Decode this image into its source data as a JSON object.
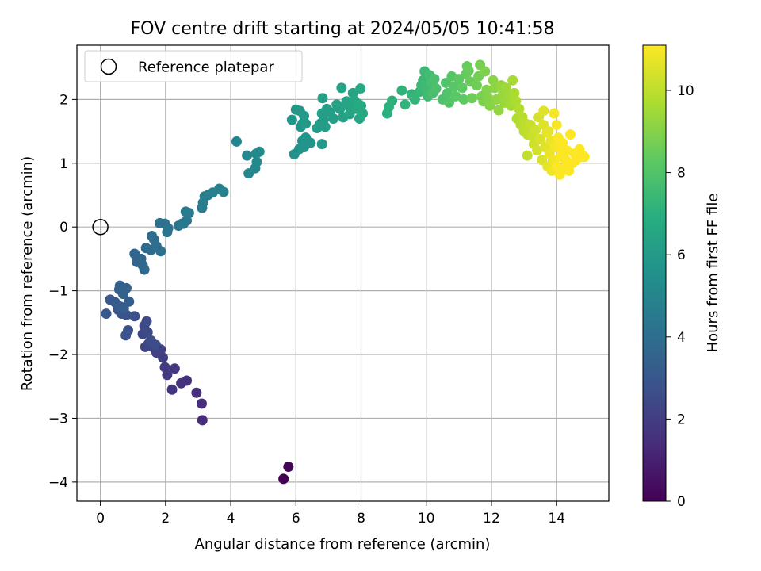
{
  "chart_data": {
    "type": "scatter",
    "title": "FOV centre drift starting at 2024/05/05 10:41:58",
    "xlabel": "Angular distance from reference (arcmin)",
    "ylabel": "Rotation from reference (arcmin)",
    "xlim": [
      -0.72,
      15.6
    ],
    "ylim": [
      -4.3,
      2.85
    ],
    "x_ticks": [
      0,
      2,
      4,
      6,
      8,
      10,
      12,
      14
    ],
    "y_ticks": [
      -4,
      -3,
      -2,
      -1,
      0,
      1,
      2
    ],
    "grid": true,
    "legend": {
      "position": "top-left",
      "entries": [
        "Reference platepar"
      ]
    },
    "reference_point": {
      "x": 0,
      "y": 0
    },
    "colorbar": {
      "label": "Hours from first FF file",
      "range": [
        0,
        11.1
      ],
      "ticks": [
        0,
        2,
        4,
        6,
        8,
        10
      ],
      "colormap": "viridis"
    },
    "points": [
      {
        "x": 5.62,
        "y": -3.95,
        "h": 0.05
      },
      {
        "x": 5.77,
        "y": -3.76,
        "h": 0.12
      },
      {
        "x": 3.13,
        "y": -3.03,
        "h": 1.35
      },
      {
        "x": 3.11,
        "y": -2.77,
        "h": 1.4
      },
      {
        "x": 2.95,
        "y": -2.6,
        "h": 1.45
      },
      {
        "x": 2.65,
        "y": -2.41,
        "h": 1.55
      },
      {
        "x": 2.48,
        "y": -2.45,
        "h": 1.62
      },
      {
        "x": 2.2,
        "y": -2.55,
        "h": 1.7
      },
      {
        "x": 2.28,
        "y": -2.22,
        "h": 1.78
      },
      {
        "x": 2.05,
        "y": -2.32,
        "h": 1.85
      },
      {
        "x": 1.98,
        "y": -2.2,
        "h": 1.92
      },
      {
        "x": 1.92,
        "y": -2.05,
        "h": 2.0
      },
      {
        "x": 1.85,
        "y": -1.92,
        "h": 2.05
      },
      {
        "x": 1.72,
        "y": -1.97,
        "h": 2.12
      },
      {
        "x": 1.6,
        "y": -1.88,
        "h": 2.18
      },
      {
        "x": 1.48,
        "y": -1.83,
        "h": 2.25
      },
      {
        "x": 1.38,
        "y": -1.88,
        "h": 2.32
      },
      {
        "x": 1.3,
        "y": -1.68,
        "h": 2.38
      },
      {
        "x": 1.45,
        "y": -1.65,
        "h": 2.42
      },
      {
        "x": 1.35,
        "y": -1.55,
        "h": 2.48
      },
      {
        "x": 1.42,
        "y": -1.48,
        "h": 2.52
      },
      {
        "x": 1.55,
        "y": -1.78,
        "h": 2.58
      },
      {
        "x": 1.7,
        "y": -1.85,
        "h": 2.62
      },
      {
        "x": 1.05,
        "y": -1.4,
        "h": 2.7
      },
      {
        "x": 0.85,
        "y": -1.62,
        "h": 2.75
      },
      {
        "x": 0.78,
        "y": -1.7,
        "h": 2.8
      },
      {
        "x": 0.8,
        "y": -1.38,
        "h": 2.85
      },
      {
        "x": 0.65,
        "y": -1.36,
        "h": 2.9
      },
      {
        "x": 0.55,
        "y": -1.3,
        "h": 2.95
      },
      {
        "x": 0.45,
        "y": -1.18,
        "h": 3.0
      },
      {
        "x": 0.3,
        "y": -1.14,
        "h": 3.05
      },
      {
        "x": 0.18,
        "y": -1.36,
        "h": 3.1
      },
      {
        "x": 0.52,
        "y": -1.22,
        "h": 3.15
      },
      {
        "x": 0.62,
        "y": -1.25,
        "h": 3.2
      },
      {
        "x": 0.72,
        "y": -1.28,
        "h": 3.25
      },
      {
        "x": 0.88,
        "y": -1.17,
        "h": 3.3
      },
      {
        "x": 0.58,
        "y": -0.98,
        "h": 3.35
      },
      {
        "x": 0.6,
        "y": -0.92,
        "h": 3.4
      },
      {
        "x": 0.8,
        "y": -0.96,
        "h": 3.45
      },
      {
        "x": 0.7,
        "y": -1.05,
        "h": 3.5
      },
      {
        "x": 1.12,
        "y": -0.55,
        "h": 3.55
      },
      {
        "x": 1.05,
        "y": -0.42,
        "h": 3.6
      },
      {
        "x": 1.25,
        "y": -0.5,
        "h": 3.65
      },
      {
        "x": 1.3,
        "y": -0.6,
        "h": 3.7
      },
      {
        "x": 1.35,
        "y": -0.67,
        "h": 3.75
      },
      {
        "x": 1.4,
        "y": -0.33,
        "h": 3.8
      },
      {
        "x": 1.55,
        "y": -0.36,
        "h": 3.85
      },
      {
        "x": 1.65,
        "y": -0.2,
        "h": 3.9
      },
      {
        "x": 1.58,
        "y": -0.14,
        "h": 3.95
      },
      {
        "x": 1.72,
        "y": -0.3,
        "h": 4.0
      },
      {
        "x": 1.85,
        "y": -0.38,
        "h": 4.05
      },
      {
        "x": 1.82,
        "y": 0.06,
        "h": 4.1
      },
      {
        "x": 1.98,
        "y": 0.05,
        "h": 4.15
      },
      {
        "x": 2.08,
        "y": -0.02,
        "h": 4.2
      },
      {
        "x": 2.05,
        "y": -0.08,
        "h": 4.25
      },
      {
        "x": 2.4,
        "y": 0.02,
        "h": 4.3
      },
      {
        "x": 2.5,
        "y": 0.05,
        "h": 4.35
      },
      {
        "x": 2.65,
        "y": 0.1,
        "h": 4.4
      },
      {
        "x": 2.55,
        "y": 0.05,
        "h": 4.45
      },
      {
        "x": 2.62,
        "y": 0.24,
        "h": 4.5
      },
      {
        "x": 2.72,
        "y": 0.22,
        "h": 4.55
      },
      {
        "x": 3.12,
        "y": 0.3,
        "h": 4.6
      },
      {
        "x": 3.15,
        "y": 0.38,
        "h": 4.65
      },
      {
        "x": 3.2,
        "y": 0.48,
        "h": 4.7
      },
      {
        "x": 3.3,
        "y": 0.5,
        "h": 4.75
      },
      {
        "x": 3.45,
        "y": 0.54,
        "h": 4.8
      },
      {
        "x": 3.65,
        "y": 0.6,
        "h": 4.85
      },
      {
        "x": 3.78,
        "y": 0.55,
        "h": 4.9
      },
      {
        "x": 4.18,
        "y": 1.34,
        "h": 5.0
      },
      {
        "x": 4.5,
        "y": 1.12,
        "h": 5.05
      },
      {
        "x": 4.55,
        "y": 0.84,
        "h": 5.1
      },
      {
        "x": 4.75,
        "y": 0.92,
        "h": 5.15
      },
      {
        "x": 4.8,
        "y": 1.02,
        "h": 5.2
      },
      {
        "x": 4.78,
        "y": 1.15,
        "h": 5.25
      },
      {
        "x": 4.88,
        "y": 1.18,
        "h": 5.3
      },
      {
        "x": 5.95,
        "y": 1.14,
        "h": 5.6
      },
      {
        "x": 6.1,
        "y": 1.22,
        "h": 5.63
      },
      {
        "x": 6.2,
        "y": 1.35,
        "h": 5.66
      },
      {
        "x": 6.25,
        "y": 1.25,
        "h": 5.69
      },
      {
        "x": 6.3,
        "y": 1.4,
        "h": 5.72
      },
      {
        "x": 6.45,
        "y": 1.32,
        "h": 5.75
      },
      {
        "x": 6.15,
        "y": 1.57,
        "h": 5.78
      },
      {
        "x": 6.2,
        "y": 1.62,
        "h": 5.81
      },
      {
        "x": 5.88,
        "y": 1.68,
        "h": 5.84
      },
      {
        "x": 6.0,
        "y": 1.84,
        "h": 5.87
      },
      {
        "x": 6.12,
        "y": 1.82,
        "h": 5.9
      },
      {
        "x": 6.25,
        "y": 1.74,
        "h": 5.93
      },
      {
        "x": 6.3,
        "y": 1.62,
        "h": 5.96
      },
      {
        "x": 6.8,
        "y": 1.3,
        "h": 6.0
      },
      {
        "x": 6.65,
        "y": 1.55,
        "h": 6.03
      },
      {
        "x": 6.75,
        "y": 1.62,
        "h": 6.06
      },
      {
        "x": 6.85,
        "y": 1.68,
        "h": 6.09
      },
      {
        "x": 6.9,
        "y": 1.57,
        "h": 6.12
      },
      {
        "x": 6.8,
        "y": 1.78,
        "h": 6.15
      },
      {
        "x": 6.95,
        "y": 1.85,
        "h": 6.18
      },
      {
        "x": 7.05,
        "y": 1.8,
        "h": 6.21
      },
      {
        "x": 7.15,
        "y": 1.7,
        "h": 6.24
      },
      {
        "x": 6.82,
        "y": 2.02,
        "h": 6.27
      },
      {
        "x": 7.25,
        "y": 1.92,
        "h": 6.3
      },
      {
        "x": 7.35,
        "y": 1.85,
        "h": 6.33
      },
      {
        "x": 7.45,
        "y": 1.72,
        "h": 6.36
      },
      {
        "x": 7.4,
        "y": 2.18,
        "h": 6.39
      },
      {
        "x": 7.55,
        "y": 1.97,
        "h": 6.42
      },
      {
        "x": 7.6,
        "y": 1.9,
        "h": 6.45
      },
      {
        "x": 7.65,
        "y": 1.77,
        "h": 6.48
      },
      {
        "x": 7.75,
        "y": 2.1,
        "h": 6.51
      },
      {
        "x": 7.8,
        "y": 1.98,
        "h": 6.54
      },
      {
        "x": 7.88,
        "y": 1.85,
        "h": 6.57
      },
      {
        "x": 7.95,
        "y": 1.7,
        "h": 6.6
      },
      {
        "x": 7.98,
        "y": 2.17,
        "h": 6.63
      },
      {
        "x": 8.0,
        "y": 1.9,
        "h": 6.66
      },
      {
        "x": 8.05,
        "y": 1.78,
        "h": 6.69
      },
      {
        "x": 7.92,
        "y": 1.93,
        "h": 6.72
      },
      {
        "x": 8.8,
        "y": 1.78,
        "h": 7.0
      },
      {
        "x": 8.85,
        "y": 1.88,
        "h": 7.05
      },
      {
        "x": 8.95,
        "y": 1.98,
        "h": 7.1
      },
      {
        "x": 9.25,
        "y": 2.14,
        "h": 7.15
      },
      {
        "x": 9.35,
        "y": 1.92,
        "h": 7.2
      },
      {
        "x": 9.55,
        "y": 2.08,
        "h": 7.25
      },
      {
        "x": 9.65,
        "y": 2.0,
        "h": 7.3
      },
      {
        "x": 9.8,
        "y": 2.12,
        "h": 7.35
      },
      {
        "x": 9.85,
        "y": 2.22,
        "h": 7.4
      },
      {
        "x": 9.9,
        "y": 2.3,
        "h": 7.45
      },
      {
        "x": 9.95,
        "y": 2.44,
        "h": 7.5
      },
      {
        "x": 10.0,
        "y": 2.18,
        "h": 7.55
      },
      {
        "x": 10.05,
        "y": 2.05,
        "h": 7.6
      },
      {
        "x": 10.1,
        "y": 2.38,
        "h": 7.65
      },
      {
        "x": 10.15,
        "y": 2.26,
        "h": 7.7
      },
      {
        "x": 10.2,
        "y": 2.1,
        "h": 7.75
      },
      {
        "x": 10.25,
        "y": 2.32,
        "h": 7.8
      },
      {
        "x": 10.3,
        "y": 2.17,
        "h": 7.85
      },
      {
        "x": 10.5,
        "y": 2.0,
        "h": 7.9
      },
      {
        "x": 10.6,
        "y": 2.26,
        "h": 7.95
      },
      {
        "x": 10.65,
        "y": 2.1,
        "h": 8.0
      },
      {
        "x": 10.7,
        "y": 1.95,
        "h": 8.05
      },
      {
        "x": 10.78,
        "y": 2.36,
        "h": 8.1
      },
      {
        "x": 10.85,
        "y": 2.2,
        "h": 8.15
      },
      {
        "x": 10.9,
        "y": 2.05,
        "h": 8.2
      },
      {
        "x": 11.0,
        "y": 2.32,
        "h": 8.25
      },
      {
        "x": 11.1,
        "y": 2.18,
        "h": 8.3
      },
      {
        "x": 11.15,
        "y": 2.0,
        "h": 8.35
      },
      {
        "x": 11.22,
        "y": 2.4,
        "h": 8.4
      },
      {
        "x": 11.25,
        "y": 2.52,
        "h": 8.45
      },
      {
        "x": 11.3,
        "y": 2.45,
        "h": 8.5
      },
      {
        "x": 11.35,
        "y": 2.28,
        "h": 8.55
      },
      {
        "x": 11.4,
        "y": 2.02,
        "h": 8.6
      },
      {
        "x": 11.55,
        "y": 2.22,
        "h": 8.65
      },
      {
        "x": 11.6,
        "y": 2.36,
        "h": 8.7
      },
      {
        "x": 11.65,
        "y": 2.54,
        "h": 8.75
      },
      {
        "x": 11.7,
        "y": 2.05,
        "h": 8.8
      },
      {
        "x": 11.75,
        "y": 1.97,
        "h": 8.85
      },
      {
        "x": 11.8,
        "y": 2.44,
        "h": 8.9
      },
      {
        "x": 11.85,
        "y": 2.15,
        "h": 8.95
      },
      {
        "x": 11.9,
        "y": 2.02,
        "h": 9.0
      },
      {
        "x": 11.95,
        "y": 1.9,
        "h": 9.05
      },
      {
        "x": 12.05,
        "y": 2.3,
        "h": 9.1
      },
      {
        "x": 12.1,
        "y": 2.18,
        "h": 9.15
      },
      {
        "x": 12.15,
        "y": 2.0,
        "h": 9.2
      },
      {
        "x": 12.22,
        "y": 1.83,
        "h": 9.25
      },
      {
        "x": 12.3,
        "y": 2.22,
        "h": 9.3
      },
      {
        "x": 12.35,
        "y": 2.08,
        "h": 9.35
      },
      {
        "x": 12.4,
        "y": 1.95,
        "h": 9.4
      },
      {
        "x": 12.45,
        "y": 2.18,
        "h": 9.45
      },
      {
        "x": 12.55,
        "y": 2.05,
        "h": 9.5
      },
      {
        "x": 12.6,
        "y": 1.9,
        "h": 9.55
      },
      {
        "x": 12.65,
        "y": 2.3,
        "h": 9.6
      },
      {
        "x": 12.7,
        "y": 2.1,
        "h": 9.65
      },
      {
        "x": 12.75,
        "y": 1.98,
        "h": 9.7
      },
      {
        "x": 12.78,
        "y": 1.7,
        "h": 9.75
      },
      {
        "x": 12.85,
        "y": 1.85,
        "h": 9.8
      },
      {
        "x": 12.9,
        "y": 1.6,
        "h": 9.85
      },
      {
        "x": 12.95,
        "y": 1.72,
        "h": 9.9
      },
      {
        "x": 13.0,
        "y": 1.5,
        "h": 9.95
      },
      {
        "x": 13.05,
        "y": 1.62,
        "h": 10.0
      },
      {
        "x": 13.1,
        "y": 1.45,
        "h": 10.05
      },
      {
        "x": 13.1,
        "y": 1.12,
        "h": 10.1
      },
      {
        "x": 13.2,
        "y": 1.6,
        "h": 10.15
      },
      {
        "x": 13.25,
        "y": 1.42,
        "h": 10.2
      },
      {
        "x": 13.3,
        "y": 1.3,
        "h": 10.25
      },
      {
        "x": 13.35,
        "y": 1.52,
        "h": 10.3
      },
      {
        "x": 13.4,
        "y": 1.2,
        "h": 10.35
      },
      {
        "x": 13.45,
        "y": 1.72,
        "h": 10.4
      },
      {
        "x": 13.5,
        "y": 1.38,
        "h": 10.45
      },
      {
        "x": 13.55,
        "y": 1.05,
        "h": 10.5
      },
      {
        "x": 13.6,
        "y": 1.6,
        "h": 10.55
      },
      {
        "x": 13.65,
        "y": 1.25,
        "h": 10.6
      },
      {
        "x": 13.7,
        "y": 1.48,
        "h": 10.65
      },
      {
        "x": 13.72,
        "y": 0.95,
        "h": 10.7
      },
      {
        "x": 13.78,
        "y": 1.15,
        "h": 10.75
      },
      {
        "x": 13.82,
        "y": 1.35,
        "h": 10.8
      },
      {
        "x": 13.85,
        "y": 0.88,
        "h": 10.85
      },
      {
        "x": 13.88,
        "y": 1.05,
        "h": 10.9
      },
      {
        "x": 13.92,
        "y": 1.78,
        "h": 10.95
      },
      {
        "x": 13.95,
        "y": 1.25,
        "h": 11.0
      },
      {
        "x": 14.0,
        "y": 0.95,
        "h": 11.05
      },
      {
        "x": 14.05,
        "y": 1.4,
        "h": 11.1
      },
      {
        "x": 14.1,
        "y": 0.82,
        "h": 11.1
      },
      {
        "x": 14.12,
        "y": 1.1,
        "h": 11.1
      },
      {
        "x": 14.18,
        "y": 1.32,
        "h": 11.1
      },
      {
        "x": 14.22,
        "y": 0.92,
        "h": 11.1
      },
      {
        "x": 14.28,
        "y": 1.05,
        "h": 11.1
      },
      {
        "x": 14.32,
        "y": 1.2,
        "h": 11.1
      },
      {
        "x": 14.38,
        "y": 0.88,
        "h": 11.1
      },
      {
        "x": 14.42,
        "y": 1.45,
        "h": 11.1
      },
      {
        "x": 14.48,
        "y": 1.0,
        "h": 11.1
      },
      {
        "x": 14.55,
        "y": 1.15,
        "h": 11.1
      },
      {
        "x": 14.62,
        "y": 1.05,
        "h": 11.1
      },
      {
        "x": 14.7,
        "y": 1.22,
        "h": 11.1
      },
      {
        "x": 14.8,
        "y": 1.12,
        "h": 11.1
      },
      {
        "x": 14.85,
        "y": 1.1,
        "h": 11.1
      },
      {
        "x": 13.75,
        "y": 1.5,
        "h": 10.72
      },
      {
        "x": 13.6,
        "y": 1.82,
        "h": 10.56
      },
      {
        "x": 14.0,
        "y": 1.6,
        "h": 10.98
      },
      {
        "x": 14.15,
        "y": 1.22,
        "h": 11.1
      }
    ]
  }
}
